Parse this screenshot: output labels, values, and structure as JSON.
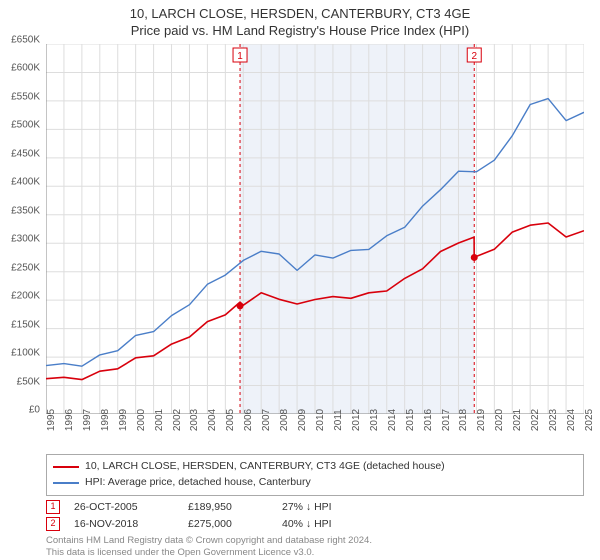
{
  "title_line1": "10, LARCH CLOSE, HERSDEN, CANTERBURY, CT3 4GE",
  "title_line2": "Price paid vs. HM Land Registry's House Price Index (HPI)",
  "chart": {
    "type": "line",
    "background_color": "#ffffff",
    "plot_left_years": 1995,
    "plot_right_years": 2025,
    "ylim": [
      0,
      650000
    ],
    "ytick_step": 50000,
    "y_tick_labels": [
      "£0",
      "£50K",
      "£100K",
      "£150K",
      "£200K",
      "£250K",
      "£300K",
      "£350K",
      "£400K",
      "£450K",
      "£500K",
      "£550K",
      "£600K",
      "£650K"
    ],
    "x_tick_years": [
      1995,
      1996,
      1997,
      1998,
      1999,
      2000,
      2001,
      2002,
      2003,
      2004,
      2005,
      2006,
      2007,
      2008,
      2009,
      2010,
      2011,
      2012,
      2013,
      2014,
      2015,
      2016,
      2017,
      2018,
      2019,
      2020,
      2021,
      2022,
      2023,
      2024,
      2025
    ],
    "grid_color": "#dddddd",
    "axis_color": "#888888",
    "red_series_color": "#d8000c",
    "blue_series_color": "#4a7ec8",
    "red_line_width": 1.6,
    "blue_line_width": 1.4,
    "shade_ranges": [
      {
        "from_year": 2005.82,
        "to_year": 2018.88,
        "color": "#eef2f9"
      }
    ],
    "sale_markers": [
      {
        "n": "1",
        "year": 2005.82,
        "color": "#d8000c"
      },
      {
        "n": "2",
        "year": 2018.88,
        "color": "#d8000c"
      }
    ],
    "series_blue_hpi": [
      [
        1995,
        85000
      ],
      [
        1996,
        88000
      ],
      [
        1997,
        92000
      ],
      [
        1998,
        100000
      ],
      [
        1999,
        112000
      ],
      [
        2000,
        130000
      ],
      [
        2001,
        148000
      ],
      [
        2002,
        172000
      ],
      [
        2003,
        200000
      ],
      [
        2004,
        225000
      ],
      [
        2005,
        245000
      ],
      [
        2006,
        262000
      ],
      [
        2007,
        288000
      ],
      [
        2008,
        280000
      ],
      [
        2009,
        260000
      ],
      [
        2010,
        278000
      ],
      [
        2011,
        275000
      ],
      [
        2012,
        280000
      ],
      [
        2013,
        290000
      ],
      [
        2014,
        312000
      ],
      [
        2015,
        335000
      ],
      [
        2016,
        365000
      ],
      [
        2017,
        395000
      ],
      [
        2018,
        420000
      ],
      [
        2019,
        425000
      ],
      [
        2020,
        445000
      ],
      [
        2021,
        495000
      ],
      [
        2022,
        545000
      ],
      [
        2023,
        555000
      ],
      [
        2024,
        510000
      ],
      [
        2025,
        530000
      ]
    ],
    "series_red_property": [
      [
        1995,
        62000
      ],
      [
        1996,
        64000
      ],
      [
        1997,
        67000
      ],
      [
        1998,
        72000
      ],
      [
        1999,
        80000
      ],
      [
        2000,
        92000
      ],
      [
        2001,
        105000
      ],
      [
        2002,
        122000
      ],
      [
        2003,
        142000
      ],
      [
        2004,
        160000
      ],
      [
        2005,
        175000
      ],
      [
        2005.82,
        189950
      ],
      [
        2006,
        193000
      ],
      [
        2007,
        212000
      ],
      [
        2008,
        208000
      ],
      [
        2009,
        192000
      ],
      [
        2010,
        202000
      ],
      [
        2011,
        200000
      ],
      [
        2012,
        204000
      ],
      [
        2013,
        212000
      ],
      [
        2014,
        222000
      ],
      [
        2015,
        238000
      ],
      [
        2016,
        256000
      ],
      [
        2017,
        280000
      ],
      [
        2018,
        300000
      ],
      [
        2018.87,
        310000
      ],
      [
        2018.88,
        275000
      ],
      [
        2019,
        278000
      ],
      [
        2020,
        290000
      ],
      [
        2021,
        315000
      ],
      [
        2022,
        330000
      ],
      [
        2023,
        335000
      ],
      [
        2024,
        315000
      ],
      [
        2025,
        322000
      ]
    ],
    "sale_dots": [
      {
        "year": 2005.82,
        "value": 189950,
        "color": "#d8000c"
      },
      {
        "year": 2018.88,
        "value": 275000,
        "color": "#d8000c"
      }
    ]
  },
  "legend": {
    "red_label": "10, LARCH CLOSE, HERSDEN, CANTERBURY, CT3 4GE (detached house)",
    "blue_label": "HPI: Average price, detached house, Canterbury"
  },
  "sales": [
    {
      "n": "1",
      "date": "26-OCT-2005",
      "price": "£189,950",
      "delta": "27% ↓ HPI",
      "color": "#d8000c"
    },
    {
      "n": "2",
      "date": "16-NOV-2018",
      "price": "£275,000",
      "delta": "40% ↓ HPI",
      "color": "#d8000c"
    }
  ],
  "footer_line1": "Contains HM Land Registry data © Crown copyright and database right 2024.",
  "footer_line2": "This data is licensed under the Open Government Licence v3.0."
}
